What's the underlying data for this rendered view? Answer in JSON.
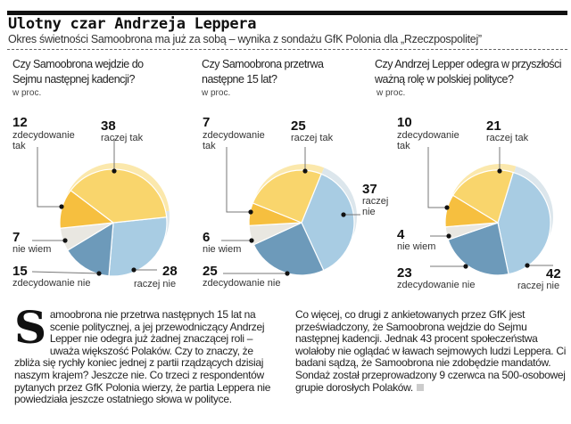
{
  "header": {
    "title": "Ulotny czar Andrzeja Leppera",
    "subtitle": "Okres świetności Samoobrona ma już za sobą – wynika z sondażu GfK Polonia dla „Rzeczpospolitej”"
  },
  "chart_data": [
    {
      "type": "pie",
      "title": "Czy Samoobrona wejdzie do Sejmu następnej kadencji?",
      "unit": "w proc.",
      "labels": [
        "raczej nie",
        "zdecydowanie nie",
        "nie wiem",
        "zdecydowanie tak",
        "raczej tak"
      ],
      "values": [
        28,
        15,
        7,
        12,
        38
      ]
    },
    {
      "type": "pie",
      "title": "Czy Samoobrona przetrwa następne 15 lat?",
      "unit": "w proc.",
      "labels": [
        "raczej nie",
        "zdecydowanie nie",
        "nie wiem",
        "zdecydowanie tak",
        "raczej tak"
      ],
      "values": [
        37,
        25,
        6,
        7,
        25
      ]
    },
    {
      "type": "pie",
      "title": "Czy Andrzej Lepper odegra w przyszłości ważną rolę w polskiej polityce?",
      "unit": "w proc.",
      "labels": [
        "raczej nie",
        "zdecydowanie nie",
        "nie wiem",
        "zdecydowanie tak",
        "raczej tak"
      ],
      "values": [
        42,
        23,
        4,
        10,
        21
      ]
    }
  ],
  "colors": {
    "raczej nie": "#a8cce3",
    "zdecydowanie nie": "#6d9aba",
    "nie wiem": "#e9e7e1",
    "zdecydowanie tak": "#f6bf3f",
    "raczej tak": "#f9d56c"
  },
  "rim_colors": {
    "raczej nie": "#dce6ec",
    "zdecydowanie nie": "#dce6ec",
    "nie wiem": "#eeece6",
    "zdecydowanie tak": "#fbe6a6",
    "raczej tak": "#fbe8ac"
  },
  "article": {
    "dropcap": "S",
    "col1": "amoobrona nie przetrwa następnych 15 lat na scenie politycznej, a jej przewodniczący Andrzej Lepper nie odegra już żadnej znaczącej roli – uważa większość Polaków. Czy to znaczy, że zbliża się rychły koniec jednej z partii rządzących dzisiaj naszym krajem? Jeszcze nie. Co trzeci z respondentów pytanych przez GfK Polonia wierzy, że partia Leppera nie powiedziała jeszcze ostatniego słowa w polityce.",
    "col2": "Co więcej, co drugi z ankietowanych przez GfK jest przeświadczony, że Samoobrona wejdzie do Sejmu następnej kadencji. Jednak 43 procent społeczeństwa wolałoby nie oglądać w ławach sejmowych ludzi Leppera. Ci badani sądzą, że Samoobrona nie zdobędzie mandatów.",
    "col2b": "Sondaż został przeprowadzony 9 czerwca na 500-osobowej grupie dorosłych Polaków."
  }
}
